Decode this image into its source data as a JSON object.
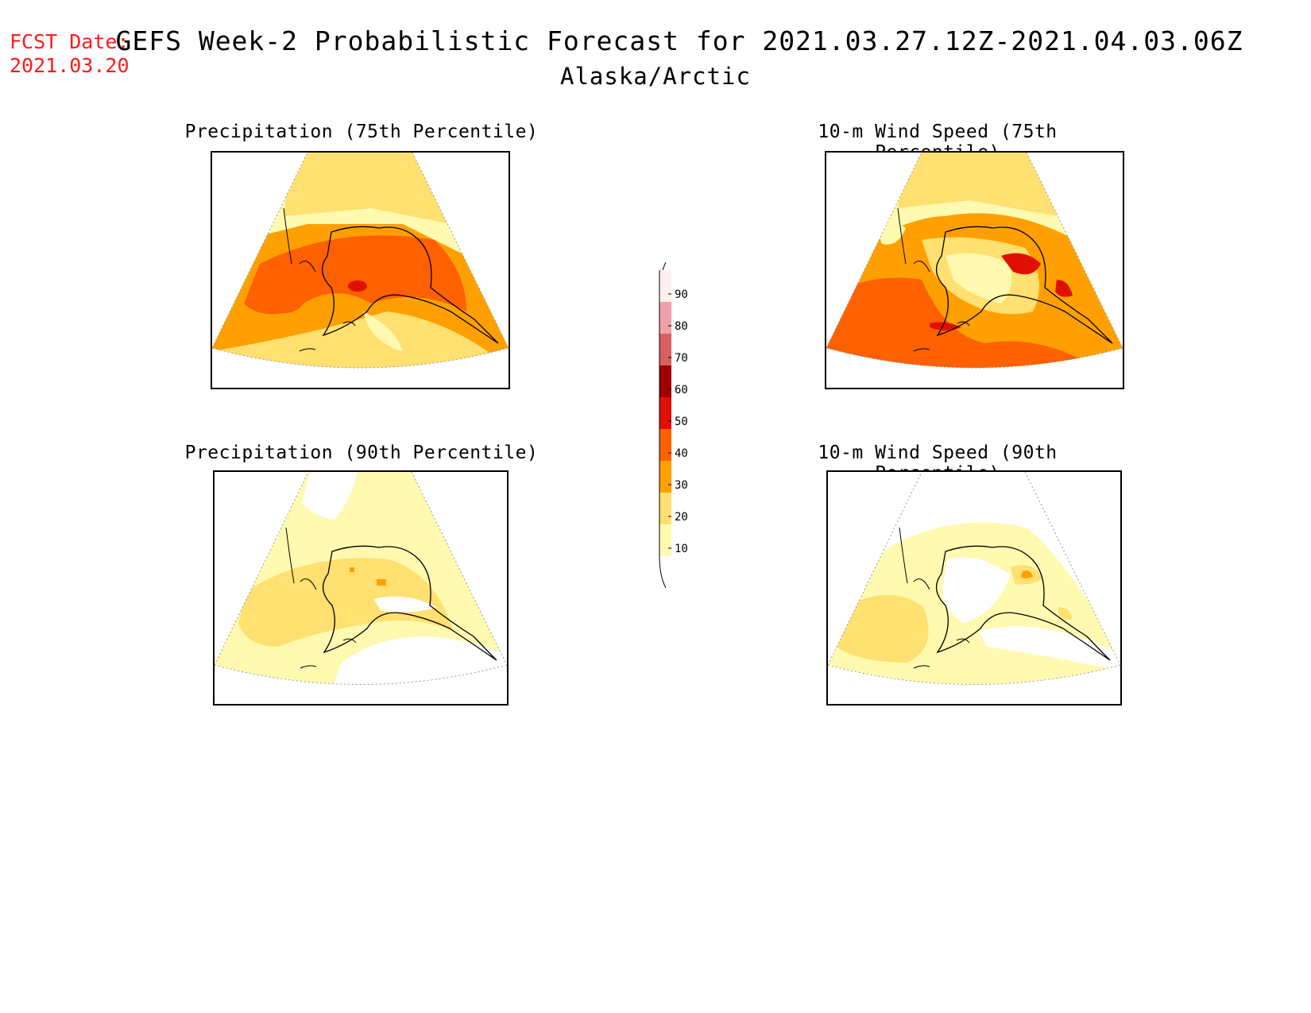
{
  "header": {
    "fcst_label": "FCST Date:",
    "fcst_date": "2021.03.20",
    "title": "GEFS Week-2 Probabilistic Forecast for 2021.03.27.12Z-2021.04.03.06Z",
    "region": "Alaska/Arctic"
  },
  "panels": [
    {
      "title": "Precipitation (75th Percentile)"
    },
    {
      "title": "10-m Wind Speed (75th Percentile)"
    },
    {
      "title": "Precipitation (90th Percentile)"
    },
    {
      "title": "10-m Wind Speed (90th Percentile)"
    }
  ],
  "colorbar": {
    "labels": [
      "90",
      "80",
      "70",
      "60",
      "50",
      "40",
      "30",
      "20",
      "10"
    ],
    "colors": [
      "#fff0f0",
      "#f0a0a8",
      "#d86060",
      "#a00000",
      "#e01000",
      "#ff6000",
      "#ffa000",
      "#ffe070",
      "#fffab0"
    ]
  }
}
